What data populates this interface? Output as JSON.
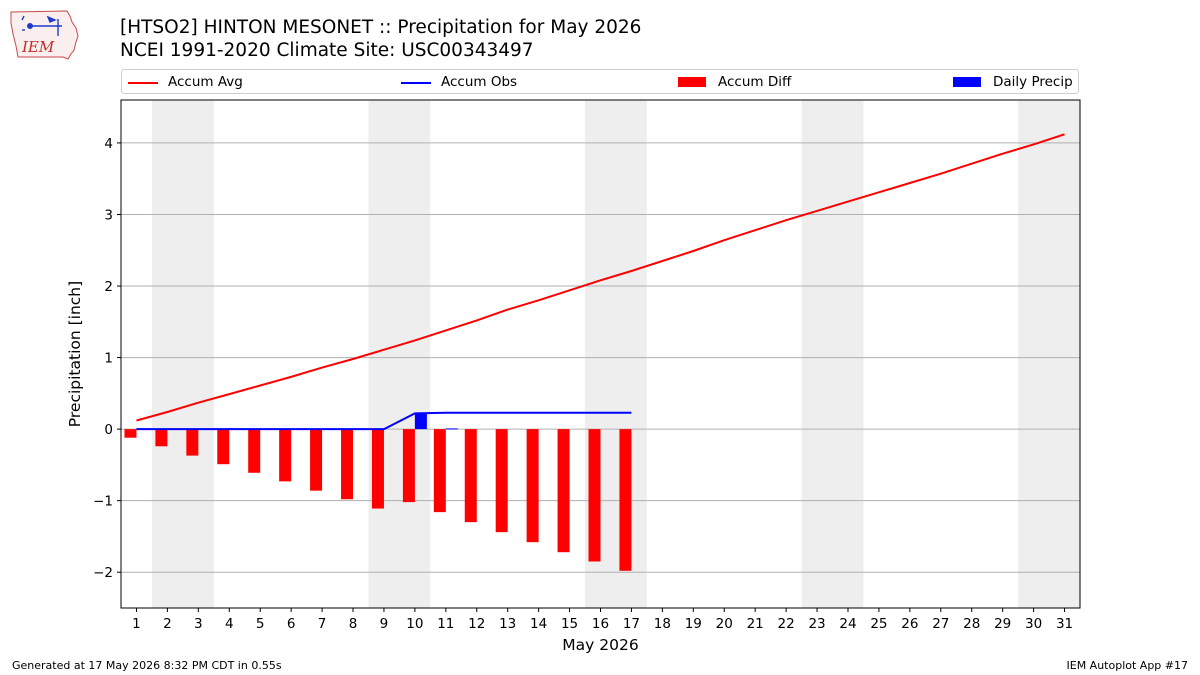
{
  "header": {
    "logo_text": "IEM",
    "title_line1": "[HTSO2] HINTON MESONET :: Precipitation for May 2026",
    "title_line2": "NCEI 1991-2020 Climate Site: USC00343497"
  },
  "legend": [
    {
      "label": "Accum Avg",
      "color": "#ff0000",
      "kind": "line"
    },
    {
      "label": "Accum Obs",
      "color": "#0000ff",
      "kind": "line"
    },
    {
      "label": "Accum Diff",
      "color": "#ff0000",
      "kind": "box"
    },
    {
      "label": "Daily Precip",
      "color": "#0000ff",
      "kind": "box"
    }
  ],
  "footer": {
    "left": "Generated at 17 May 2026 8:32 PM CDT in 0.55s",
    "right": "IEM Autoplot App #17"
  },
  "chart_data": {
    "type": "bar",
    "xlabel": "May 2026",
    "ylabel": "Precipitation [inch]",
    "xlim": [
      0.5,
      31.5
    ],
    "ylim": [
      -2.5,
      4.6
    ],
    "x_ticks": [
      1,
      2,
      3,
      4,
      5,
      6,
      7,
      8,
      9,
      10,
      11,
      12,
      13,
      14,
      15,
      16,
      17,
      18,
      19,
      20,
      21,
      22,
      23,
      24,
      25,
      26,
      27,
      28,
      29,
      30,
      31
    ],
    "y_ticks": [
      -2,
      -1,
      0,
      1,
      2,
      3,
      4
    ],
    "grid": "horizontal",
    "legend_position": "top",
    "weekend_shading": [
      [
        1.5,
        3.5
      ],
      [
        8.5,
        10.5
      ],
      [
        15.5,
        17.5
      ],
      [
        22.5,
        24.5
      ],
      [
        29.5,
        31.5
      ]
    ],
    "series": [
      {
        "name": "Accum Avg",
        "type": "line",
        "color": "#ff0000",
        "x": [
          1,
          2,
          3,
          4,
          5,
          6,
          7,
          8,
          9,
          10,
          11,
          12,
          13,
          14,
          15,
          16,
          17,
          18,
          19,
          20,
          21,
          22,
          23,
          24,
          25,
          26,
          27,
          28,
          29,
          30,
          31
        ],
        "values": [
          0.12,
          0.24,
          0.37,
          0.49,
          0.61,
          0.73,
          0.86,
          0.98,
          1.11,
          1.24,
          1.38,
          1.52,
          1.67,
          1.8,
          1.94,
          2.08,
          2.21,
          2.35,
          2.49,
          2.64,
          2.78,
          2.92,
          3.05,
          3.18,
          3.31,
          3.44,
          3.57,
          3.71,
          3.85,
          3.98,
          4.12
        ]
      },
      {
        "name": "Accum Obs",
        "type": "line",
        "color": "#0000ff",
        "x": [
          1,
          2,
          3,
          4,
          5,
          6,
          7,
          8,
          9,
          10,
          11,
          12,
          13,
          14,
          15,
          16,
          17
        ],
        "values": [
          0,
          0,
          0,
          0,
          0,
          0,
          0,
          0,
          0,
          0.22,
          0.23,
          0.23,
          0.23,
          0.23,
          0.23,
          0.23,
          0.23
        ]
      },
      {
        "name": "Accum Diff",
        "type": "bar",
        "color": "#ff0000",
        "x": [
          1,
          2,
          3,
          4,
          5,
          6,
          7,
          8,
          9,
          10,
          11,
          12,
          13,
          14,
          15,
          16,
          17
        ],
        "values": [
          -0.12,
          -0.24,
          -0.37,
          -0.49,
          -0.61,
          -0.73,
          -0.86,
          -0.98,
          -1.11,
          -1.02,
          -1.16,
          -1.3,
          -1.44,
          -1.58,
          -1.72,
          -1.85,
          -1.98
        ]
      },
      {
        "name": "Daily Precip",
        "type": "bar",
        "color": "#0000ff",
        "x": [
          1,
          2,
          3,
          4,
          5,
          6,
          7,
          8,
          9,
          10,
          11,
          12,
          13,
          14,
          15,
          16,
          17
        ],
        "values": [
          0,
          0,
          0,
          0,
          0,
          0,
          0,
          0,
          0,
          0.22,
          0.01,
          0,
          0,
          0,
          0,
          0,
          0
        ]
      }
    ]
  }
}
